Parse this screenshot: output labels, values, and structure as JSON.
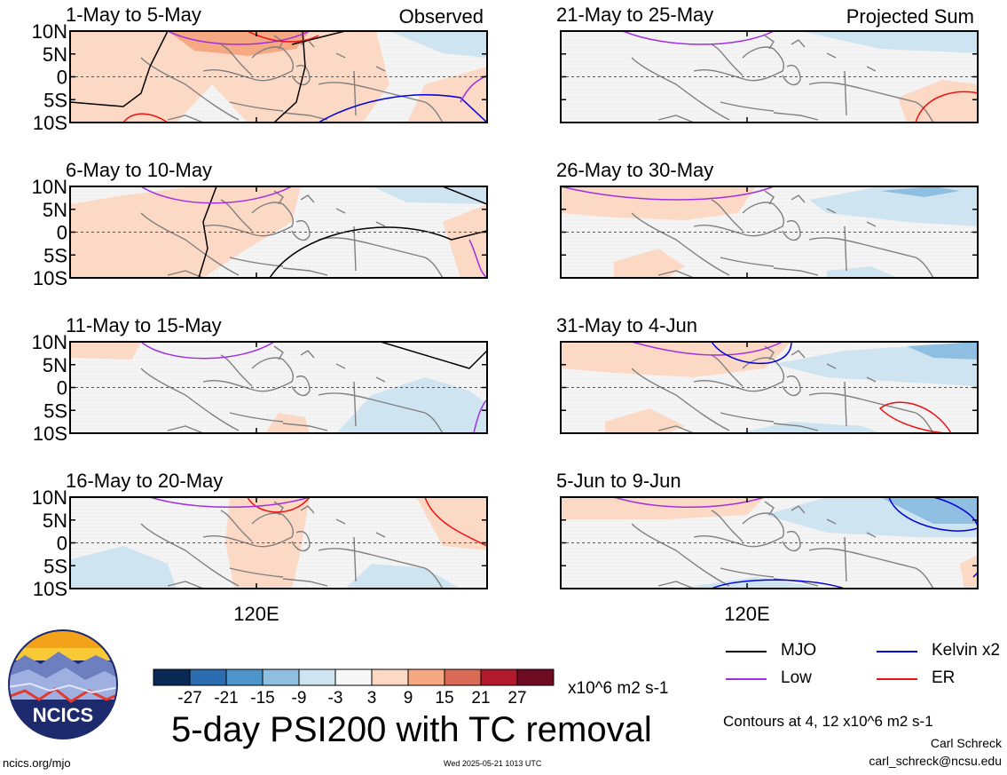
{
  "title": "5-day PSI200 with TC removal",
  "footer": {
    "url": "ncics.org/mjo",
    "timestamp": "Wed 2025-05-21 1013 UTC",
    "contour_note": "Contours at 4, 12 x10^6 m2 s-1",
    "author": "Carl Schreck",
    "email": "carl_schreck@ncsu.edu"
  },
  "logo": {
    "text": "NCICS"
  },
  "colorbar": {
    "unit": "x10^6 m2 s-1",
    "tick_labels": [
      "-27",
      "-21",
      "-15",
      "-9",
      "-3",
      "3",
      "9",
      "15",
      "21",
      "27"
    ],
    "colors": [
      "#0a2a55",
      "#2c6cb0",
      "#4d94cc",
      "#8ebfe0",
      "#cfe4f1",
      "#f7f7f7",
      "#fcd9c5",
      "#f5a882",
      "#d96a55",
      "#b3192d",
      "#6e0a22"
    ]
  },
  "legend": [
    {
      "label": "MJO",
      "color": "#000000"
    },
    {
      "label": "Kelvin x2",
      "color": "#0000dd"
    },
    {
      "label": "Low",
      "color": "#a030e0"
    },
    {
      "label": "ER",
      "color": "#ee1111"
    }
  ],
  "chart_data": [
    {
      "type": "heatmap",
      "column": "Observed",
      "period": "1-May to 5-May",
      "corner_label": "Observed",
      "y_ticks": [
        "10N",
        "5N",
        "0",
        "5S",
        "10S"
      ],
      "x_tick": "",
      "ylim": [
        -10,
        10
      ]
    },
    {
      "type": "heatmap",
      "column": "Observed",
      "period": "6-May to 10-May",
      "corner_label": "",
      "y_ticks": [
        "10N",
        "5N",
        "0",
        "5S",
        "10S"
      ],
      "x_tick": "",
      "ylim": [
        -10,
        10
      ]
    },
    {
      "type": "heatmap",
      "column": "Observed",
      "period": "11-May to 15-May",
      "corner_label": "",
      "y_ticks": [
        "10N",
        "5N",
        "0",
        "5S",
        "10S"
      ],
      "x_tick": "",
      "ylim": [
        -10,
        10
      ]
    },
    {
      "type": "heatmap",
      "column": "Observed",
      "period": "16-May to 20-May",
      "corner_label": "",
      "y_ticks": [
        "10N",
        "5N",
        "0",
        "5S",
        "10S"
      ],
      "x_tick": "120E",
      "ylim": [
        -10,
        10
      ]
    },
    {
      "type": "heatmap",
      "column": "Projected Sum",
      "period": "21-May to 25-May",
      "corner_label": "Projected Sum",
      "y_ticks": [],
      "x_tick": "",
      "ylim": [
        -10,
        10
      ]
    },
    {
      "type": "heatmap",
      "column": "Projected Sum",
      "period": "26-May to 30-May",
      "corner_label": "",
      "y_ticks": [],
      "x_tick": "",
      "ylim": [
        -10,
        10
      ]
    },
    {
      "type": "heatmap",
      "column": "Projected Sum",
      "period": "31-May to 4-Jun",
      "corner_label": "",
      "y_ticks": [],
      "x_tick": "",
      "ylim": [
        -10,
        10
      ]
    },
    {
      "type": "heatmap",
      "column": "Projected Sum",
      "period": "5-Jun to 9-Jun",
      "corner_label": "",
      "y_ticks": [],
      "x_tick": "120E",
      "ylim": [
        -10,
        10
      ]
    }
  ]
}
